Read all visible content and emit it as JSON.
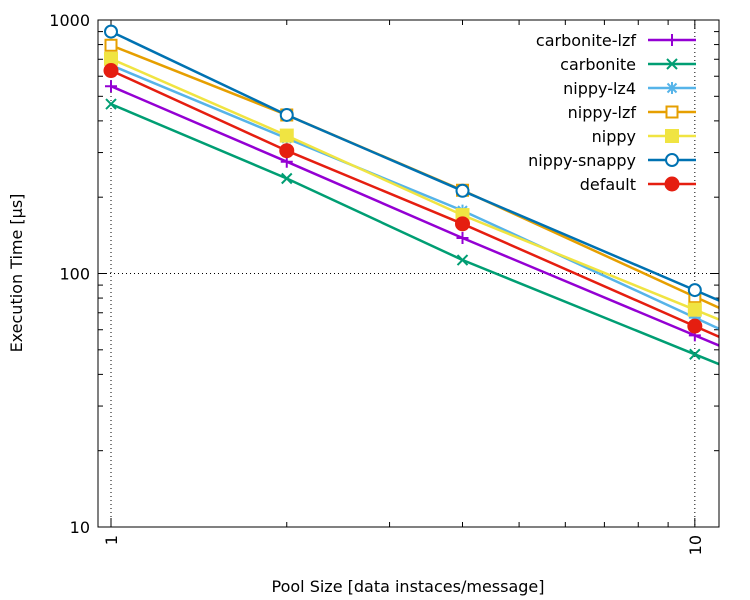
{
  "chart_data": {
    "type": "line",
    "title": "",
    "xlabel": "Pool Size [data instaces/message]",
    "ylabel": "Execution Time [μs]",
    "x_scale": "log",
    "y_scale": "log",
    "xlim": [
      0.95,
      11
    ],
    "ylim": [
      10,
      1000
    ],
    "grid": true,
    "legend_position": "top-right",
    "x_ticks": [
      {
        "value": 1,
        "label": "1"
      },
      {
        "value": 10,
        "label": "10"
      }
    ],
    "x_minor_ticks": [
      2,
      3,
      4,
      5,
      6,
      7,
      8,
      9
    ],
    "y_ticks": [
      {
        "value": 10,
        "label": "10"
      },
      {
        "value": 100,
        "label": "100"
      },
      {
        "value": 1000,
        "label": "1000"
      }
    ],
    "y_minor_ticks": [
      20,
      30,
      40,
      50,
      60,
      70,
      80,
      90,
      200,
      300,
      400,
      500,
      600,
      700,
      800,
      900
    ],
    "x": [
      1,
      2,
      4,
      10
    ],
    "series": [
      {
        "name": "carbonite-lzf",
        "color": "#9400d3",
        "marker": "plus",
        "values": [
          548,
          276,
          138,
          57
        ]
      },
      {
        "name": "carbonite",
        "color": "#009e73",
        "marker": "cross",
        "values": [
          466,
          237,
          113,
          48
        ]
      },
      {
        "name": "nippy-lz4",
        "color": "#56b4e9",
        "marker": "star",
        "values": [
          663,
          341,
          177,
          67
        ]
      },
      {
        "name": "nippy-lzf",
        "color": "#e69f00",
        "marker": "square-open",
        "values": [
          795,
          422,
          213,
          81
        ]
      },
      {
        "name": "nippy",
        "color": "#f0e442",
        "marker": "square-filled",
        "values": [
          703,
          350,
          170,
          72
        ]
      },
      {
        "name": "nippy-snappy",
        "color": "#0072b2",
        "marker": "circle-open",
        "values": [
          900,
          422,
          212,
          86
        ]
      },
      {
        "name": "default",
        "color": "#e51e10",
        "marker": "circle-filled",
        "values": [
          632,
          305,
          157,
          62
        ]
      }
    ]
  }
}
